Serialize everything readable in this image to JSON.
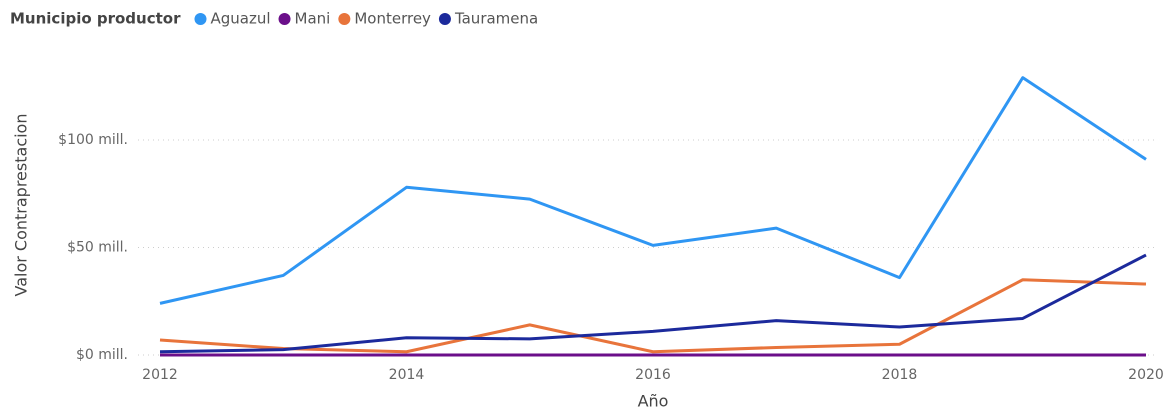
{
  "chart_data": {
    "type": "line",
    "legend_title": "Municipio productor",
    "x_label": "Año",
    "y_label": "Valor Contraprestacion",
    "x": [
      2012,
      2013,
      2014,
      2015,
      2016,
      2017,
      2018,
      2019,
      2020
    ],
    "series": [
      {
        "name": "Aguazul",
        "color": "#2f96f3",
        "values": [
          24,
          37,
          78,
          72.5,
          51,
          59,
          36,
          129,
          91
        ]
      },
      {
        "name": "Mani",
        "color": "#6b0f8a",
        "values": [
          0,
          0,
          0,
          0,
          0,
          0,
          0,
          0,
          0
        ]
      },
      {
        "name": "Monterrey",
        "color": "#e8743b",
        "values": [
          7,
          3,
          1.5,
          14,
          1.5,
          3.5,
          5,
          35,
          33
        ]
      },
      {
        "name": "Tauramena",
        "color": "#1c2a9c",
        "values": [
          1.5,
          2.5,
          8,
          7.5,
          11,
          16,
          13,
          17,
          46.5
        ]
      }
    ],
    "xlim": [
      2012,
      2020
    ],
    "xticks": [
      2012,
      2014,
      2016,
      2018,
      2020
    ],
    "ylim": [
      0,
      130
    ],
    "yticks": [
      {
        "value": 0,
        "label": "$0 mill."
      },
      {
        "value": 50,
        "label": "$50 mill."
      },
      {
        "value": 100,
        "label": "$100 mill."
      }
    ],
    "grid": true,
    "legend": "top-left"
  }
}
